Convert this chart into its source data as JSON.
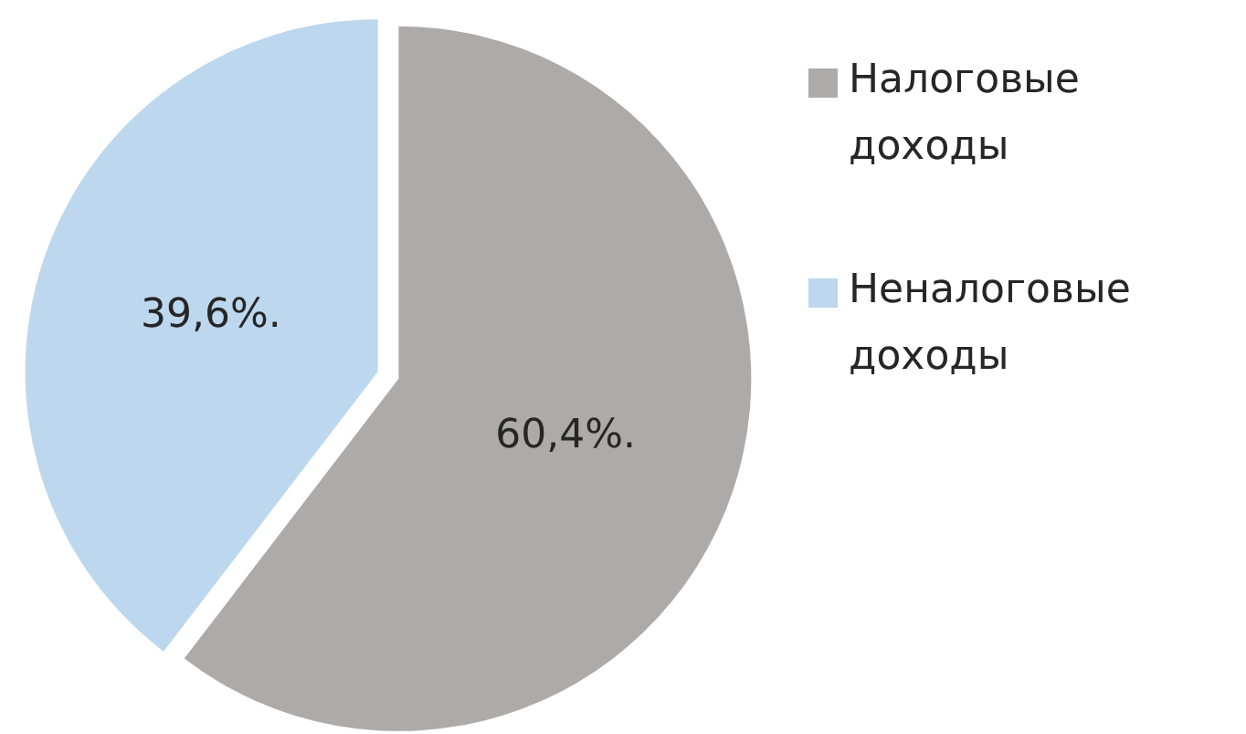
{
  "chart_data": {
    "type": "pie",
    "categories": [
      "Налоговые доходы",
      "Неналоговые доходы"
    ],
    "values": [
      60.4,
      39.6
    ],
    "colors": [
      "#aeaaaa",
      "#bdd7ee"
    ],
    "value_labels": [
      "60,4%.",
      "39,6%."
    ],
    "legend": "right"
  }
}
